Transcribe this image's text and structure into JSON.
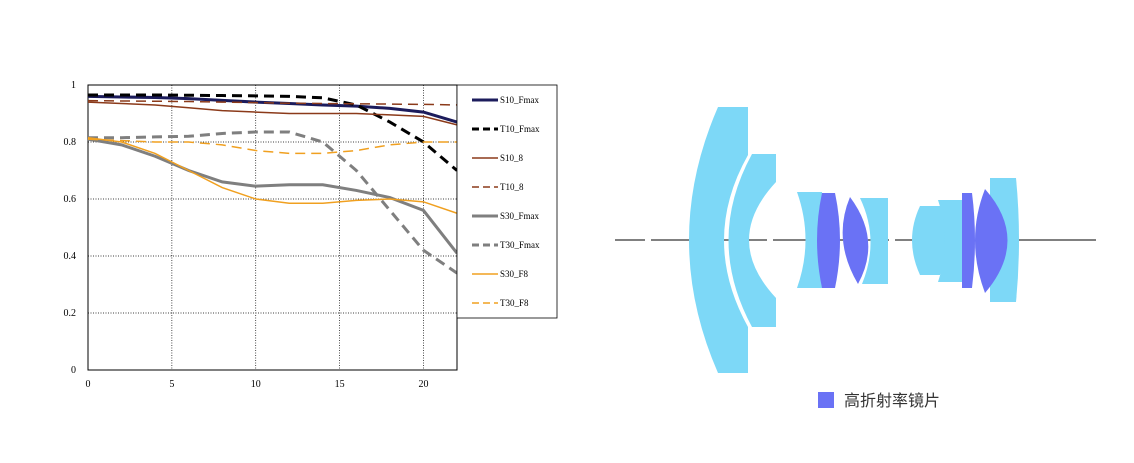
{
  "chart_data": {
    "type": "line",
    "x": [
      0,
      2,
      4,
      6,
      8,
      10,
      12,
      14,
      16,
      18,
      20,
      22
    ],
    "xlim": [
      0,
      22
    ],
    "xticks": [
      0,
      5,
      10,
      15,
      20
    ],
    "ylim": [
      0,
      1
    ],
    "yticks": [
      0,
      0.2,
      0.4,
      0.6,
      0.8,
      1
    ],
    "grid": true,
    "series": [
      {
        "name": "S10_Fmax",
        "color": "#1c1c5c",
        "style": "solid",
        "width": 3,
        "values": [
          0.96,
          0.958,
          0.956,
          0.952,
          0.946,
          0.94,
          0.935,
          0.93,
          0.926,
          0.918,
          0.905,
          0.87
        ]
      },
      {
        "name": "T10_Fmax",
        "color": "#000000",
        "style": "dashed",
        "width": 3,
        "values": [
          0.965,
          0.965,
          0.965,
          0.964,
          0.963,
          0.962,
          0.96,
          0.955,
          0.93,
          0.87,
          0.8,
          0.7
        ]
      },
      {
        "name": "S10_8",
        "color": "#8b3a1a",
        "style": "solid",
        "width": 1.5,
        "values": [
          0.94,
          0.935,
          0.93,
          0.92,
          0.91,
          0.905,
          0.9,
          0.9,
          0.9,
          0.895,
          0.89,
          0.86
        ]
      },
      {
        "name": "T10_8",
        "color": "#8b3a1a",
        "style": "dashed",
        "width": 1.5,
        "values": [
          0.945,
          0.944,
          0.943,
          0.942,
          0.94,
          0.938,
          0.936,
          0.935,
          0.934,
          0.933,
          0.932,
          0.93
        ]
      },
      {
        "name": "S30_Fmax",
        "color": "#7f7f7f",
        "style": "solid",
        "width": 3,
        "values": [
          0.81,
          0.79,
          0.75,
          0.7,
          0.66,
          0.645,
          0.65,
          0.65,
          0.63,
          0.605,
          0.56,
          0.41
        ]
      },
      {
        "name": "T30_Fmax",
        "color": "#7f7f7f",
        "style": "dashed",
        "width": 3,
        "values": [
          0.815,
          0.815,
          0.818,
          0.82,
          0.83,
          0.835,
          0.835,
          0.8,
          0.7,
          0.56,
          0.42,
          0.34
        ]
      },
      {
        "name": "S30_F8",
        "color": "#f0a020",
        "style": "solid",
        "width": 1.5,
        "values": [
          0.815,
          0.8,
          0.76,
          0.7,
          0.64,
          0.6,
          0.585,
          0.585,
          0.595,
          0.6,
          0.59,
          0.55
        ]
      },
      {
        "name": "T30_F8",
        "color": "#f0a020",
        "style": "dashed",
        "width": 1.5,
        "values": [
          0.81,
          0.805,
          0.8,
          0.8,
          0.79,
          0.77,
          0.76,
          0.76,
          0.77,
          0.79,
          0.8,
          0.8
        ]
      }
    ]
  },
  "diagram": {
    "legend": "高折射率镜片"
  }
}
